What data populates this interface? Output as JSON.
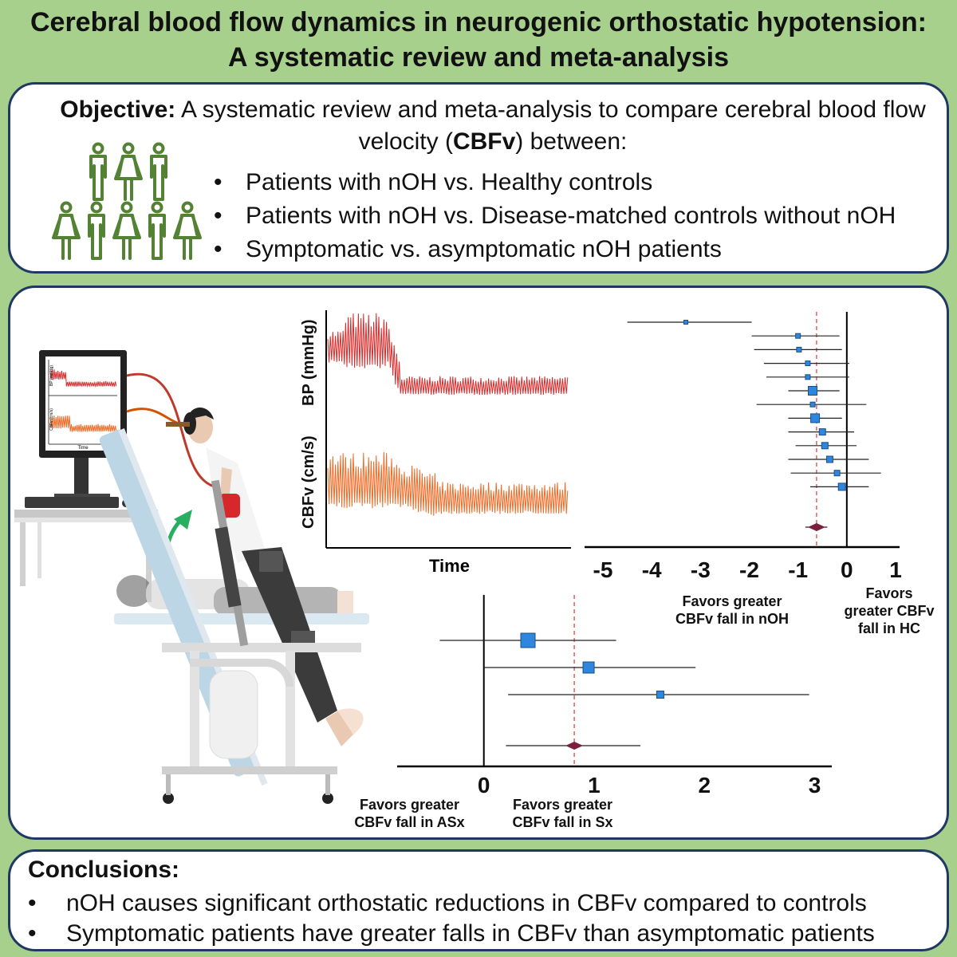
{
  "title": {
    "line1": "Cerebral blood flow dynamics in neurogenic orthostatic hypotension:",
    "line2": "A systematic review and meta-analysis"
  },
  "objective": {
    "label": "Objective:",
    "text_before": " A systematic review and meta-analysis to compare cerebral blood flow velocity (",
    "abbr": "CBFv",
    "text_after": ") between:",
    "bullets": [
      "Patients with nOH vs. Healthy controls",
      "Patients with nOH vs. Disease-matched controls without nOH",
      "Symptomatic vs. asymptomatic nOH patients"
    ],
    "icon": "people-group-icon"
  },
  "traces": {
    "bp_label": "BP (mmHg)",
    "cbfv_label": "CBFv (cm/s)",
    "x_label": "Time",
    "bp_color": "#d92b2b",
    "cbfv_color": "#f06a25"
  },
  "monitor": {
    "x_label": "Time",
    "bp_label": "BP (mmHg)",
    "cbfv_label": "CBFv (cm/s)"
  },
  "chart_data": [
    {
      "type": "scatter",
      "name": "forest-plot-nOH-vs-HC",
      "xlim": [
        -5,
        1
      ],
      "x_ticks": [
        -5,
        -4,
        -3,
        -2,
        -1,
        0,
        1
      ],
      "reference_line": 0,
      "pooled_line": -0.62,
      "studies": [
        {
          "est": -3.3,
          "lo": -4.5,
          "hi": -1.95
        },
        {
          "est": -1.0,
          "lo": -1.95,
          "hi": -0.15
        },
        {
          "est": -0.98,
          "lo": -1.9,
          "hi": -0.1
        },
        {
          "est": -0.8,
          "lo": -1.7,
          "hi": 0.05
        },
        {
          "est": -0.8,
          "lo": -1.65,
          "hi": 0.05
        },
        {
          "est": -0.7,
          "lo": -1.2,
          "hi": -0.15
        },
        {
          "est": -0.7,
          "lo": -1.85,
          "hi": 0.4
        },
        {
          "est": -0.65,
          "lo": -1.2,
          "hi": -0.1
        },
        {
          "est": -0.5,
          "lo": -1.2,
          "hi": 0.15
        },
        {
          "est": -0.45,
          "lo": -1.05,
          "hi": 0.2
        },
        {
          "est": -0.35,
          "lo": -1.2,
          "hi": 0.45
        },
        {
          "est": -0.2,
          "lo": -1.15,
          "hi": 0.7
        },
        {
          "est": -0.1,
          "lo": -0.75,
          "hi": 0.45
        }
      ],
      "pooled": {
        "est": -0.62,
        "lo": -0.85,
        "hi": -0.4
      },
      "favors_left": "Favors greater CBFv fall in nOH",
      "favors_right": "Favors greater CBFv fall in HC"
    },
    {
      "type": "scatter",
      "name": "forest-plot-Sx-vs-ASx",
      "xlim": [
        -0.75,
        3.3
      ],
      "x_ticks": [
        0,
        1,
        2,
        3
      ],
      "reference_line": 0,
      "pooled_line": 0.82,
      "studies": [
        {
          "est": 0.4,
          "lo": -0.4,
          "hi": 1.2
        },
        {
          "est": 0.95,
          "lo": 0.0,
          "hi": 1.92
        },
        {
          "est": 1.6,
          "lo": 0.22,
          "hi": 2.95
        }
      ],
      "pooled": {
        "est": 0.82,
        "lo": 0.2,
        "hi": 1.42
      },
      "favors_left": "Favors greater CBFv fall in ASx",
      "favors_right": "Favors greater CBFv fall in Sx"
    }
  ],
  "conclusions": {
    "label": "Conclusions:",
    "items": [
      "nOH causes significant orthostatic reductions in CBFv compared to controls",
      "Symptomatic patients have greater falls in CBFv than asymptomatic patients"
    ]
  },
  "illustration": {
    "scene": "tilt-table-illustration",
    "computer": "computer-monitor-icon",
    "arrow": "tilt-arrow-icon"
  }
}
